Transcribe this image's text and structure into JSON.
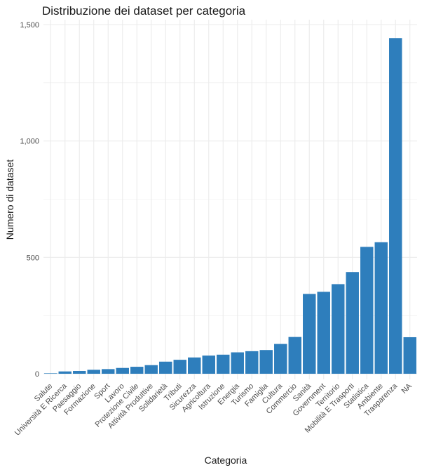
{
  "chart_data": {
    "type": "bar",
    "title": "Distribuzione dei dataset per categoria",
    "xlabel": "Categoria",
    "ylabel": "Numero di dataset",
    "categories": [
      "Salute",
      "Università E Ricerca",
      "Paesaggio",
      "Formazione",
      "Sport",
      "Lavoro",
      "Protezione Civile",
      "Attività Produttive",
      "Solidarietà",
      "Tributi",
      "Sicurezza",
      "Agricoltura",
      "Istruzione",
      "Energia",
      "Turismo",
      "Famiglia",
      "Cultura",
      "Commercio",
      "Sanità",
      "Government",
      "Territorio",
      "Mobilità E Trasporti",
      "Statistica",
      "Ambiente",
      "Trasparenza",
      "NA"
    ],
    "values": [
      2,
      10,
      12,
      17,
      20,
      25,
      30,
      37,
      52,
      60,
      70,
      78,
      82,
      92,
      97,
      102,
      128,
      158,
      343,
      352,
      385,
      437,
      545,
      565,
      1442,
      157
    ],
    "ylim": [
      0,
      1500
    ],
    "yticks": [
      0,
      500,
      1000,
      1500
    ],
    "ytick_labels": [
      "0",
      "500",
      "1,000",
      "1,500"
    ],
    "grid": true,
    "legend": "none",
    "bar_color": "#2e7ebc",
    "grid_color": "#ebebeb"
  }
}
